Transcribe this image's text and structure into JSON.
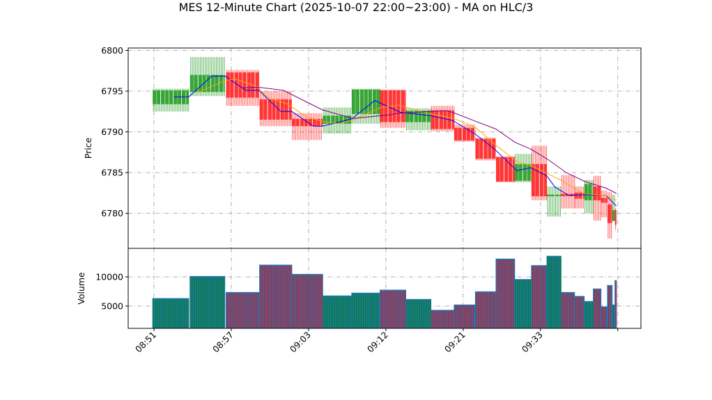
{
  "chart_data": {
    "type": "candlestick",
    "title": "MES 12-Minute Chart (2025-10-07 22:00~23:00) - MA on HLC/3",
    "colors": {
      "up": "#2ca02c",
      "down": "#ff2a2a",
      "volume": "#1f77b4",
      "ma_short": "#0000ff",
      "ma_mid": "#ffa500",
      "ma_long": "#800080",
      "grid": "#b0b0b0"
    },
    "grid": true,
    "x_axis": {
      "xlim": [
        -2.0,
        37.8
      ],
      "ticks": [
        {
          "x": 0,
          "label": "08:51"
        },
        {
          "x": 6,
          "label": "08:57"
        },
        {
          "x": 12,
          "label": "09:03"
        },
        {
          "x": 18,
          "label": "09:12"
        },
        {
          "x": 24,
          "label": "09:21"
        },
        {
          "x": 30,
          "label": "09:33"
        },
        {
          "x": 36,
          "label": ""
        }
      ]
    },
    "price_panel": {
      "ylabel": "Price",
      "ylim": [
        6775.7,
        6800.3
      ],
      "ticks": [
        6780,
        6785,
        6790,
        6795,
        6800
      ],
      "candles": [
        {
          "x0": -0.1,
          "x1": 2.7,
          "open": 6793.4,
          "high": 6795.3,
          "low": 6792.5,
          "close": 6795.1
        },
        {
          "x0": 2.8,
          "x1": 5.5,
          "open": 6794.9,
          "high": 6799.2,
          "low": 6794.4,
          "close": 6797.0
        },
        {
          "x0": 5.6,
          "x1": 8.2,
          "open": 6797.3,
          "high": 6797.6,
          "low": 6793.2,
          "close": 6794.2
        },
        {
          "x0": 8.2,
          "x1": 10.7,
          "open": 6794.0,
          "high": 6795.0,
          "low": 6790.7,
          "close": 6791.5
        },
        {
          "x0": 10.7,
          "x1": 13.1,
          "open": 6791.6,
          "high": 6792.3,
          "low": 6789.0,
          "close": 6790.7
        },
        {
          "x0": 13.1,
          "x1": 15.35,
          "open": 6791.0,
          "high": 6793.0,
          "low": 6789.8,
          "close": 6792.0
        },
        {
          "x0": 15.35,
          "x1": 17.55,
          "open": 6792.2,
          "high": 6795.3,
          "low": 6791.0,
          "close": 6795.2
        },
        {
          "x0": 17.55,
          "x1": 19.55,
          "open": 6795.1,
          "high": 6795.2,
          "low": 6790.5,
          "close": 6791.2
        },
        {
          "x0": 19.55,
          "x1": 21.5,
          "open": 6791.2,
          "high": 6792.9,
          "low": 6790.2,
          "close": 6792.6
        },
        {
          "x0": 21.5,
          "x1": 23.3,
          "open": 6792.65,
          "high": 6793.2,
          "low": 6790.1,
          "close": 6790.35
        },
        {
          "x0": 23.3,
          "x1": 24.95,
          "open": 6790.5,
          "high": 6790.9,
          "low": 6788.8,
          "close": 6788.95
        },
        {
          "x0": 24.95,
          "x1": 26.55,
          "open": 6789.15,
          "high": 6789.3,
          "low": 6786.5,
          "close": 6786.7
        },
        {
          "x0": 26.55,
          "x1": 28.0,
          "open": 6786.9,
          "high": 6787.0,
          "low": 6783.8,
          "close": 6783.9
        },
        {
          "x0": 28.0,
          "x1": 29.3,
          "open": 6784.0,
          "high": 6787.3,
          "low": 6783.8,
          "close": 6786.05
        },
        {
          "x0": 29.3,
          "x1": 30.5,
          "open": 6786.05,
          "high": 6788.3,
          "low": 6781.6,
          "close": 6782.1
        },
        {
          "x0": 30.5,
          "x1": 31.6,
          "open": 6782.1,
          "high": 6783.3,
          "low": 6779.6,
          "close": 6782.3
        },
        {
          "x0": 31.6,
          "x1": 32.65,
          "open": 6782.4,
          "high": 6784.7,
          "low": 6780.6,
          "close": 6782.1
        },
        {
          "x0": 32.65,
          "x1": 33.4,
          "open": 6782.55,
          "high": 6783.3,
          "low": 6780.6,
          "close": 6781.8
        },
        {
          "x0": 33.4,
          "x1": 34.1,
          "open": 6781.6,
          "high": 6784.1,
          "low": 6780.0,
          "close": 6783.6
        },
        {
          "x0": 34.1,
          "x1": 34.7,
          "open": 6783.3,
          "high": 6784.6,
          "low": 6779.1,
          "close": 6781.6
        },
        {
          "x0": 34.7,
          "x1": 35.2,
          "open": 6781.9,
          "high": 6782.8,
          "low": 6779.5,
          "close": 6781.3
        },
        {
          "x0": 35.2,
          "x1": 35.57,
          "open": 6781.1,
          "high": 6782.6,
          "low": 6776.9,
          "close": 6778.8
        },
        {
          "x0": 35.57,
          "x1": 35.78,
          "open": 6779.1,
          "high": 6782.3,
          "low": 6779.0,
          "close": 6780.4
        },
        {
          "x0": 35.78,
          "x1": 35.9,
          "open": 6780.4,
          "high": 6780.6,
          "low": 6778.0,
          "close": 6778.6
        }
      ],
      "moving_averages": [
        {
          "color_key": "ma_short",
          "points": [
            [
              1.57,
              6794.3
            ],
            [
              2.7,
              6794.3
            ],
            [
              4.49,
              6796.85
            ],
            [
              5.51,
              6796.85
            ],
            [
              7.14,
              6795.1
            ],
            [
              8.16,
              6795.1
            ],
            [
              9.84,
              6792.5
            ],
            [
              10.7,
              6792.5
            ],
            [
              12.38,
              6790.7
            ],
            [
              13.08,
              6790.7
            ],
            [
              15.35,
              6791.6
            ],
            [
              17.14,
              6793.85
            ],
            [
              19.14,
              6792.4
            ],
            [
              21.46,
              6792.0
            ],
            [
              23.19,
              6791.4
            ],
            [
              24.97,
              6789.7
            ],
            [
              26.43,
              6787.9
            ],
            [
              28.16,
              6785.25
            ],
            [
              29.24,
              6785.6
            ],
            [
              30.49,
              6784.6
            ],
            [
              31.14,
              6783.2
            ],
            [
              32.22,
              6782.2
            ],
            [
              33.46,
              6782.3
            ],
            [
              35.08,
              6782.2
            ],
            [
              35.89,
              6780.9
            ]
          ]
        },
        {
          "color_key": "ma_mid",
          "points": [
            [
              3.35,
              6794.8
            ],
            [
              5.51,
              6796.3
            ],
            [
              6.27,
              6796.5
            ],
            [
              8.05,
              6795.55
            ],
            [
              8.76,
              6794.3
            ],
            [
              10.38,
              6793.4
            ],
            [
              11.84,
              6791.85
            ],
            [
              13.08,
              6791.3
            ],
            [
              14.38,
              6791.0
            ],
            [
              15.35,
              6791.4
            ],
            [
              17.62,
              6793.0
            ],
            [
              18.97,
              6793.3
            ],
            [
              21.41,
              6792.2
            ],
            [
              23.19,
              6791.7
            ],
            [
              24.92,
              6790.6
            ],
            [
              26.59,
              6788.3
            ],
            [
              28.22,
              6786.3
            ],
            [
              29.24,
              6785.9
            ],
            [
              31.68,
              6784.0
            ],
            [
              32.76,
              6782.9
            ],
            [
              33.46,
              6782.4
            ],
            [
              35.08,
              6782.2
            ],
            [
              35.89,
              6781.6
            ]
          ]
        },
        {
          "color_key": "ma_long",
          "points": [
            [
              6.81,
              6795.4
            ],
            [
              8.05,
              6795.5
            ],
            [
              10.05,
              6795.1
            ],
            [
              13.08,
              6792.7
            ],
            [
              15.46,
              6791.65
            ],
            [
              18.32,
              6792.1
            ],
            [
              19.03,
              6792.3
            ],
            [
              22.65,
              6792.6
            ],
            [
              23.19,
              6792.4
            ],
            [
              24.81,
              6791.4
            ],
            [
              26.54,
              6790.35
            ],
            [
              28.05,
              6788.7
            ],
            [
              29.24,
              6787.9
            ],
            [
              30.59,
              6786.6
            ],
            [
              32.0,
              6785.0
            ],
            [
              33.46,
              6783.9
            ],
            [
              35.08,
              6783.1
            ],
            [
              35.89,
              6782.45
            ]
          ]
        }
      ]
    },
    "volume_panel": {
      "ylabel": "Volume",
      "ylim": [
        1190,
        14880
      ],
      "ticks": [
        5000,
        10000
      ],
      "values": [
        6300,
        10080,
        7340,
        12020,
        10440,
        6750,
        7230,
        7740,
        6150,
        4290,
        5200,
        7460,
        13060,
        9560,
        11940,
        13540,
        7340,
        6670,
        5800,
        7940,
        4880,
        8540,
        5200,
        9370
      ]
    }
  }
}
